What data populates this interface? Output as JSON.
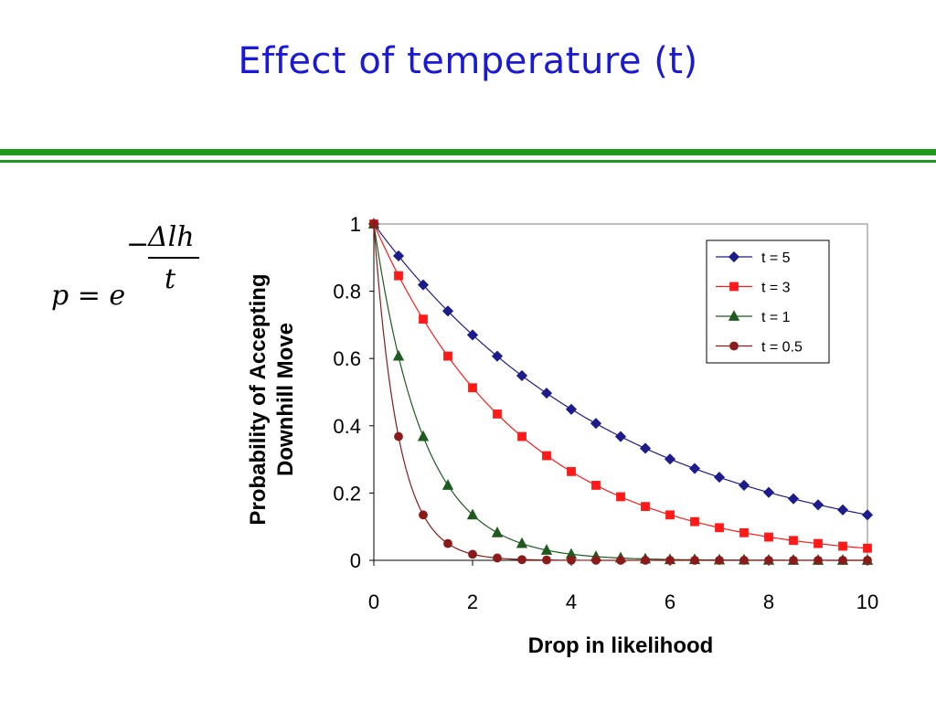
{
  "slide": {
    "title": "Effect of temperature (t)"
  },
  "formula": {
    "lhs": "p = e",
    "exponent_sign": "−",
    "exponent_numerator": "Δlh",
    "exponent_denominator": "t"
  },
  "colors": {
    "title": "#1a1ad6",
    "rules": "#1f9a1f"
  },
  "chart_data": {
    "type": "line",
    "title": "",
    "xlabel": "Drop in likelihood",
    "ylabel_lines": [
      "Probability of Accepting",
      "Downhill Move"
    ],
    "xlim": [
      0,
      10
    ],
    "ylim": [
      0,
      1
    ],
    "xticks": [
      0,
      2,
      4,
      6,
      8,
      10
    ],
    "yticks": [
      0,
      0.2,
      0.4,
      0.6,
      0.8,
      1
    ],
    "xtick_labels": [
      "0",
      "2",
      "4",
      "6",
      "8",
      "10"
    ],
    "ytick_labels": [
      "0",
      "0.2",
      "0.4",
      "0.6",
      "0.8",
      "1"
    ],
    "grid": false,
    "legend_position": "top-right",
    "x": [
      0,
      0.5,
      1,
      1.5,
      2,
      2.5,
      3,
      3.5,
      4,
      4.5,
      5,
      5.5,
      6,
      6.5,
      7,
      7.5,
      8,
      8.5,
      9,
      9.5,
      10
    ],
    "series": [
      {
        "name": "t = 5",
        "color": "#1c1c8c",
        "marker": "diamond",
        "values": [
          1,
          0.905,
          0.819,
          0.741,
          0.67,
          0.607,
          0.549,
          0.497,
          0.449,
          0.407,
          0.368,
          0.333,
          0.301,
          0.273,
          0.247,
          0.223,
          0.202,
          0.183,
          0.165,
          0.15,
          0.135
        ]
      },
      {
        "name": "t = 3",
        "color": "#ff1a1a",
        "marker": "square",
        "values": [
          1,
          0.846,
          0.717,
          0.607,
          0.513,
          0.435,
          0.368,
          0.311,
          0.264,
          0.223,
          0.189,
          0.16,
          0.135,
          0.115,
          0.097,
          0.082,
          0.069,
          0.059,
          0.05,
          0.042,
          0.036
        ]
      },
      {
        "name": "t = 1",
        "color": "#1f5a1f",
        "marker": "triangle",
        "values": [
          1,
          0.607,
          0.368,
          0.223,
          0.135,
          0.082,
          0.05,
          0.03,
          0.018,
          0.011,
          0.007,
          0.004,
          0.002,
          0.002,
          0.001,
          0.001,
          0.0003,
          0.0002,
          0.0001,
          0.0001,
          5e-05
        ]
      },
      {
        "name": "t = 0.5",
        "color": "#8b1a1a",
        "marker": "circle",
        "values": [
          1,
          0.368,
          0.135,
          0.05,
          0.018,
          0.007,
          0.002,
          0.001,
          0.0003,
          0.0001,
          5e-05,
          2e-05,
          1e-05,
          0,
          0,
          0,
          0,
          0,
          0,
          0,
          0
        ]
      }
    ]
  }
}
